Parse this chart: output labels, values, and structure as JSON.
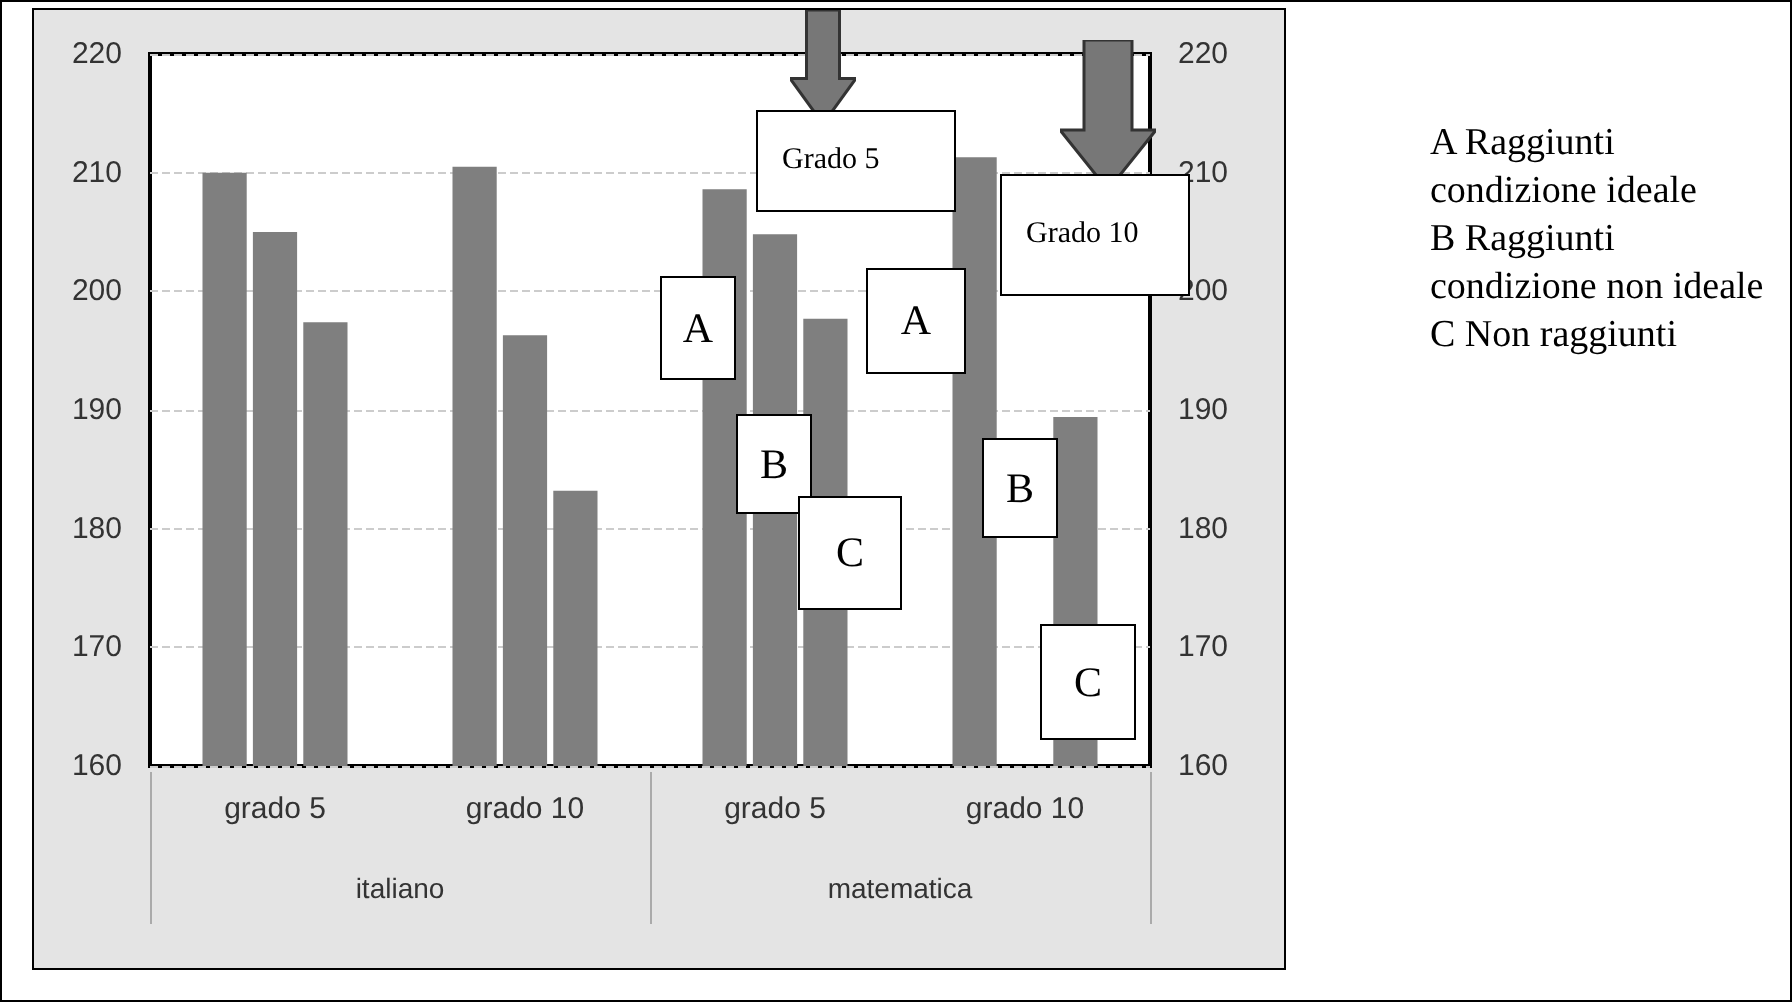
{
  "chart_data": {
    "type": "bar",
    "categories": [
      "grado 5",
      "grado 10",
      "grado 5",
      "grado 10"
    ],
    "series": [
      {
        "color": "#7f7f7f",
        "values": [
          210,
          210.5,
          208.6,
          211.3
        ]
      },
      {
        "color": "#7f7f7f",
        "values": [
          205,
          196.3,
          204.8,
          null
        ]
      },
      {
        "color": "#7f7f7f",
        "values": [
          197.4,
          183.2,
          197.7,
          189.4
        ]
      }
    ],
    "ylim": [
      160,
      220
    ],
    "yticks": [
      160,
      170,
      180,
      190,
      200,
      210,
      220
    ],
    "y2lim": [
      160,
      220
    ],
    "y2ticks": [
      160,
      170,
      180,
      190,
      200,
      210,
      220
    ],
    "grid": "y",
    "annotations": [
      "italiano",
      "matematica",
      "A",
      "A",
      "B",
      "B",
      "C",
      "C",
      "Grado 5",
      "Grado 10",
      "A Raggiunti condizione ideale",
      "B Raggiunti condizione non ideale",
      "C Non raggiunti"
    ]
  }
}
